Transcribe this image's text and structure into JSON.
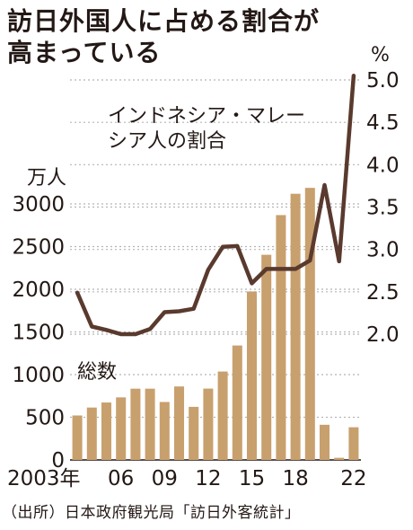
{
  "title_lines": [
    "訪日外国人に占める割合が",
    "高まっている"
  ],
  "source": "（出所）日本政府観光局「訪日外客統計」",
  "colors": {
    "bar": "#c8a06e",
    "line": "#5a3a2e",
    "grid": "#b5b5b5",
    "text": "#231815"
  },
  "chart_data": {
    "type": "bar+line",
    "x": [
      2003,
      2004,
      2005,
      2006,
      2007,
      2008,
      2009,
      2010,
      2011,
      2012,
      2013,
      2014,
      2015,
      2016,
      2017,
      2018,
      2019,
      2020,
      2021,
      2022
    ],
    "x_tick_labels": [
      {
        "x": 2003,
        "label": "2003年"
      },
      {
        "x": 2006,
        "label": "06"
      },
      {
        "x": 2009,
        "label": "09"
      },
      {
        "x": 2012,
        "label": "12"
      },
      {
        "x": 2015,
        "label": "15"
      },
      {
        "x": 2018,
        "label": "18"
      },
      {
        "x": 2022,
        "label": "22"
      }
    ],
    "series": [
      {
        "name": "総数",
        "type": "bar",
        "axis": "left",
        "values": [
          521,
          614,
          673,
          733,
          835,
          835,
          679,
          861,
          622,
          836,
          1036,
          1341,
          1974,
          2404,
          2869,
          3119,
          3188,
          412,
          25,
          383
        ]
      },
      {
        "name": "インドネシア・マレーシア人の割合",
        "type": "line",
        "axis": "right",
        "values": [
          2.49,
          2.09,
          2.05,
          2.0,
          2.0,
          2.06,
          2.26,
          2.27,
          2.3,
          2.76,
          3.03,
          3.04,
          2.6,
          2.77,
          2.77,
          2.77,
          2.87,
          3.76,
          2.86,
          5.05
        ]
      }
    ],
    "left_axis": {
      "unit": "万人",
      "ylim": [
        0,
        3000
      ],
      "ticks": [
        0,
        500,
        1000,
        1500,
        2000,
        2500,
        3000
      ]
    },
    "right_axis": {
      "unit": "%",
      "ylim": [
        2.0,
        5.0
      ],
      "ticks": [
        2.0,
        2.5,
        3.0,
        3.5,
        4.0,
        4.5,
        5.0
      ],
      "tick_labels": [
        "2.0",
        "2.5",
        "3.0",
        "3.5",
        "4.0",
        "4.5",
        "5.0"
      ]
    },
    "grid": true,
    "annotation_lines": [
      "インドネシア・マレー",
      "シア人の割合"
    ],
    "bar_label": "総数"
  }
}
